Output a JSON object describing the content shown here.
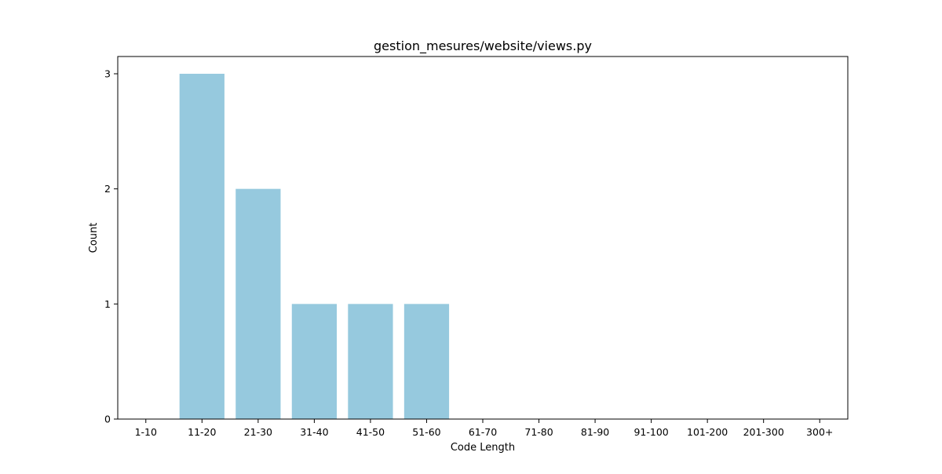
{
  "chart_data": {
    "type": "bar",
    "title": "gestion_mesures/website/views.py",
    "xlabel": "Code Length",
    "ylabel": "Count",
    "categories": [
      "1-10",
      "11-20",
      "21-30",
      "31-40",
      "41-50",
      "51-60",
      "61-70",
      "71-80",
      "81-90",
      "91-100",
      "101-200",
      "201-300",
      "300+"
    ],
    "values": [
      0,
      3,
      2,
      1,
      1,
      1,
      0,
      0,
      0,
      0,
      0,
      0,
      0
    ],
    "yticks": [
      0,
      1,
      2,
      3
    ],
    "ylim": [
      0,
      3.15
    ],
    "grid": false,
    "colors": {
      "bar": "#96c9de",
      "axes": "#000000",
      "background": "#ffffff"
    }
  }
}
